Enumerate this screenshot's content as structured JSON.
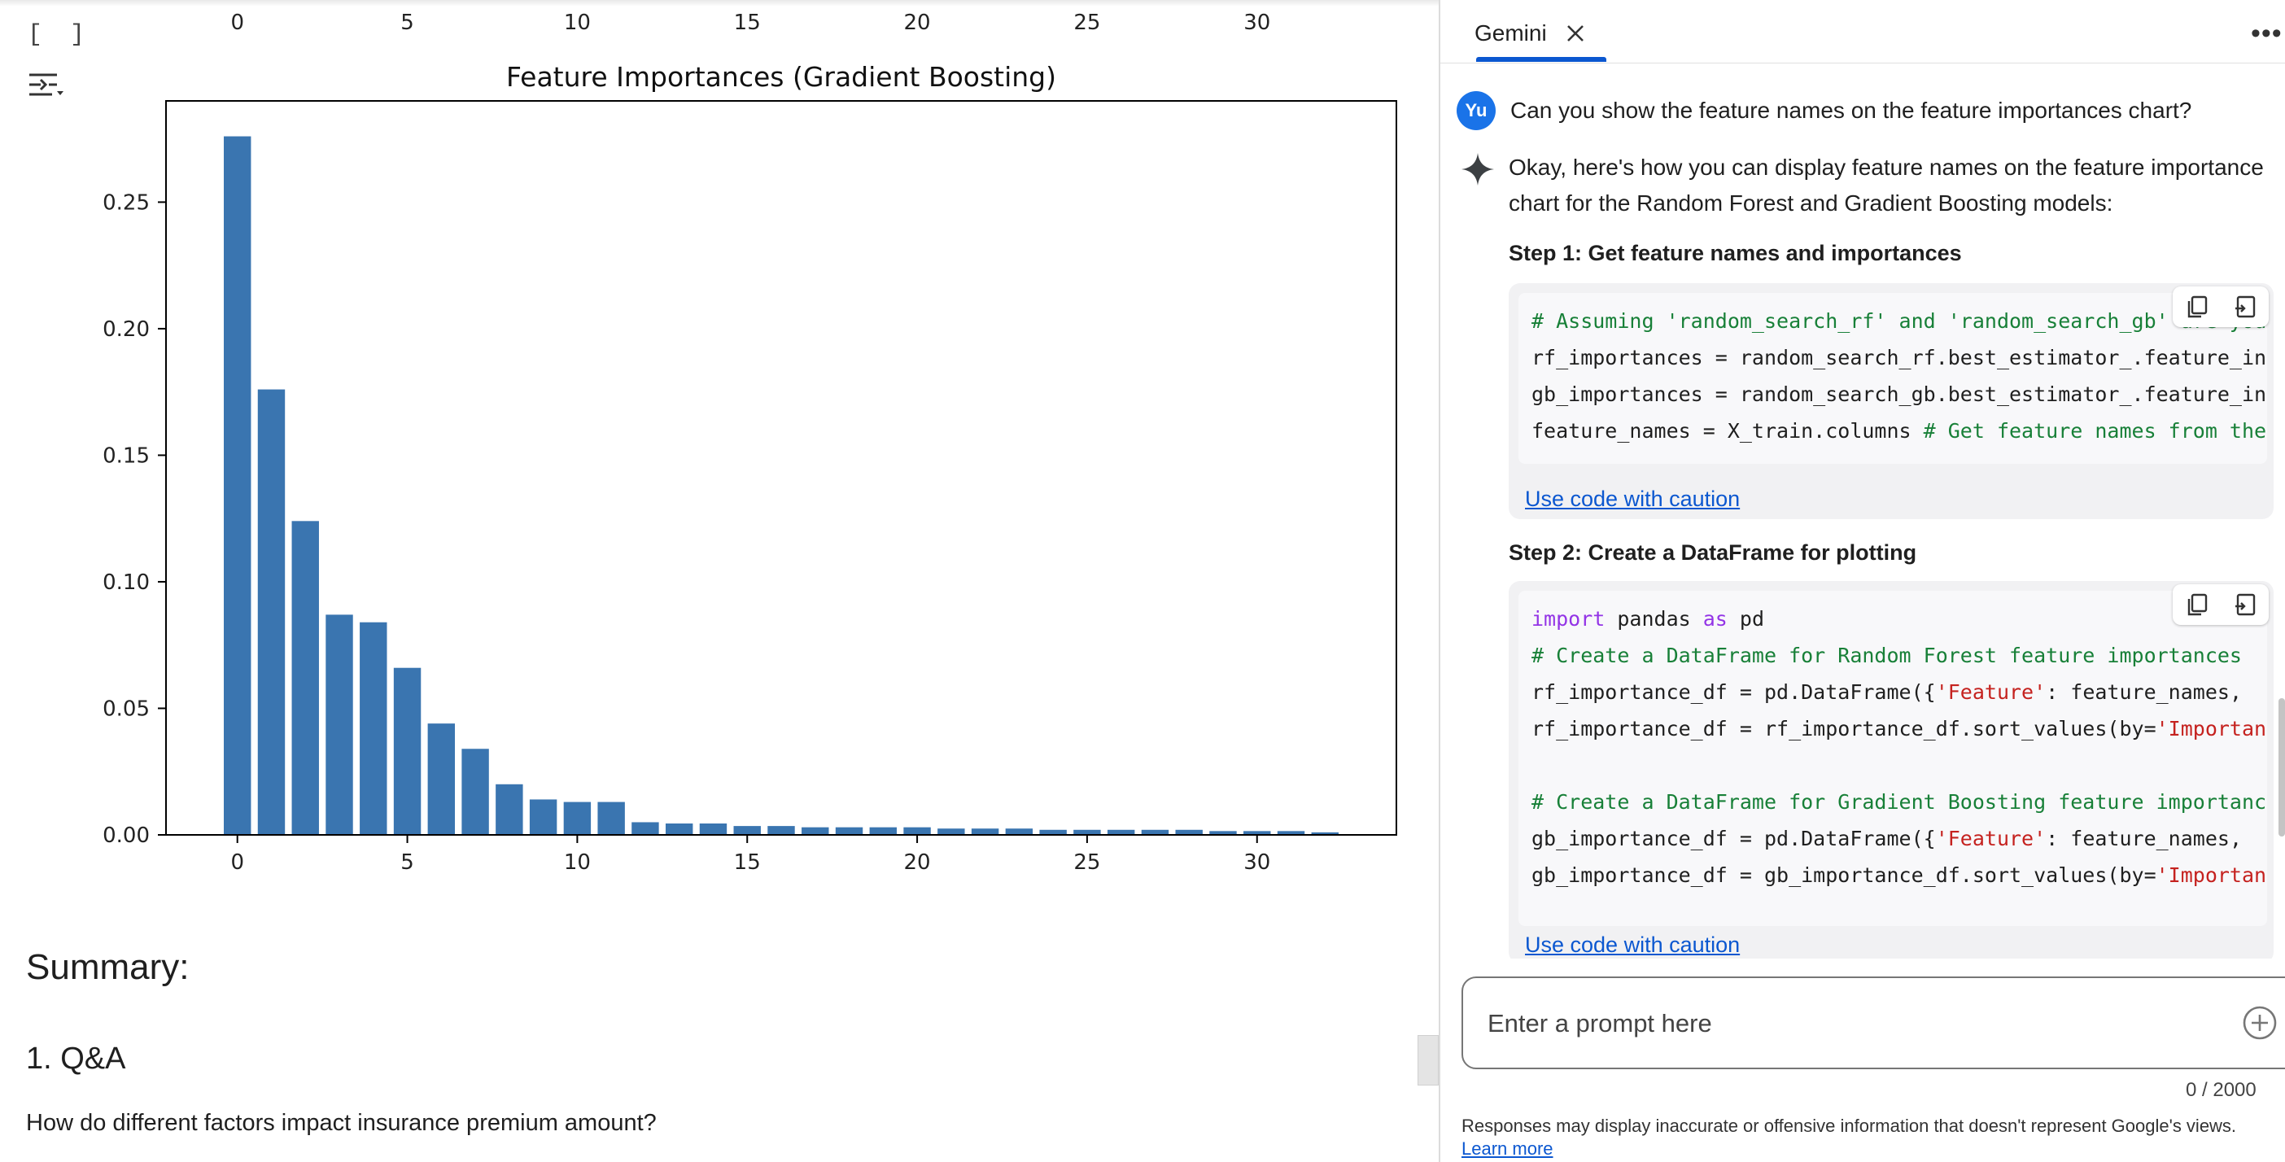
{
  "notebook": {
    "cell_bracket": "[ ]",
    "summary_heading": "Summary:",
    "qa_heading": "1. Q&A",
    "question": "How do different factors impact insurance premium amount?"
  },
  "chart_data": {
    "type": "bar",
    "title": "Feature Importances (Gradient Boosting)",
    "xlabel": "",
    "ylabel": "",
    "x": [
      0,
      1,
      2,
      3,
      4,
      5,
      6,
      7,
      8,
      9,
      10,
      11,
      12,
      13,
      14,
      15,
      16,
      17,
      18,
      19,
      20,
      21,
      22,
      23,
      24,
      25,
      26,
      27,
      28,
      29,
      30,
      31,
      32
    ],
    "values": [
      0.276,
      0.176,
      0.124,
      0.087,
      0.084,
      0.066,
      0.044,
      0.034,
      0.02,
      0.014,
      0.013,
      0.013,
      0.005,
      0.0045,
      0.0045,
      0.0035,
      0.0035,
      0.003,
      0.003,
      0.003,
      0.003,
      0.0025,
      0.0025,
      0.0025,
      0.002,
      0.002,
      0.002,
      0.002,
      0.002,
      0.0015,
      0.0015,
      0.0015,
      0.001
    ],
    "xlim": [
      -2.1,
      34.1
    ],
    "ylim": [
      0,
      0.29
    ],
    "xticks": [
      "0",
      "5",
      "10",
      "15",
      "20",
      "25",
      "30"
    ],
    "yticks": [
      "0.00",
      "0.05",
      "0.10",
      "0.15",
      "0.20",
      "0.25"
    ],
    "color": "#3a75b0",
    "grid": false,
    "partial_top_axis_ticks": [
      "0",
      "5",
      "10",
      "15",
      "20",
      "25",
      "30"
    ]
  },
  "gemini": {
    "tab_label": "Gemini",
    "more_label": "•••",
    "user_avatar": "Yu",
    "user_message": "Can you show the feature names on the feature importances chart?",
    "response_intro": "Okay, here's how you can display feature names on the feature importance chart for the Random Forest and Gradient Boosting models:",
    "step1_heading": "Step 1: Get feature names and importances",
    "step2_heading": "Step 2: Create a DataFrame for plotting",
    "caution_label": "Use code with caution",
    "code1": [
      [
        {
          "t": "# Assuming 'random_search_rf' and 'random_search_gb' are you",
          "c": "c-comment"
        }
      ],
      [
        {
          "t": "rf_importances = random_search_rf.best_estimator_.feature_in",
          "c": ""
        }
      ],
      [
        {
          "t": "gb_importances = random_search_gb.best_estimator_.feature_in",
          "c": ""
        }
      ],
      [
        {
          "t": "feature_names = X_train.columns ",
          "c": ""
        },
        {
          "t": "# Get feature names from the",
          "c": "c-comment"
        }
      ]
    ],
    "code2": [
      [
        {
          "t": "import",
          "c": "c-kw"
        },
        {
          "t": " pandas ",
          "c": ""
        },
        {
          "t": "as",
          "c": "c-kw"
        },
        {
          "t": " pd",
          "c": ""
        }
      ],
      [
        {
          "t": "# Create a DataFrame for Random Forest feature importances",
          "c": "c-comment"
        }
      ],
      [
        {
          "t": "rf_importance_df = pd.DataFrame({",
          "c": ""
        },
        {
          "t": "'Feature'",
          "c": "c-str"
        },
        {
          "t": ": feature_names,",
          "c": ""
        }
      ],
      [
        {
          "t": "rf_importance_df = rf_importance_df.sort_values(by=",
          "c": ""
        },
        {
          "t": "'Importan",
          "c": "c-str"
        }
      ],
      [
        {
          "t": "",
          "c": ""
        }
      ],
      [
        {
          "t": "# Create a DataFrame for Gradient Boosting feature importance",
          "c": "c-comment"
        }
      ],
      [
        {
          "t": "gb_importance_df = pd.DataFrame({",
          "c": ""
        },
        {
          "t": "'Feature'",
          "c": "c-str"
        },
        {
          "t": ": feature_names,",
          "c": ""
        }
      ],
      [
        {
          "t": "gb_importance_df = gb_importance_df.sort_values(by=",
          "c": ""
        },
        {
          "t": "'Importan",
          "c": "c-str"
        }
      ]
    ],
    "prompt_placeholder": "Enter a prompt here",
    "char_count": "0 / 2000",
    "disclaimer": "Responses may display inaccurate or offensive information that doesn't represent Google's views.",
    "learn_more": "Learn more"
  }
}
